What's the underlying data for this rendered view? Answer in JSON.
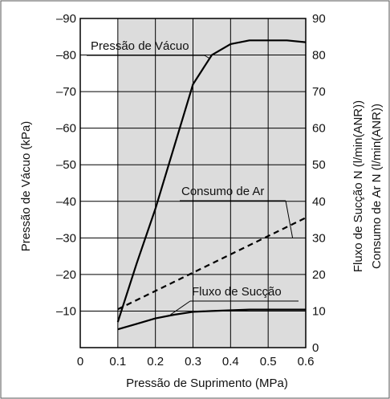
{
  "chart_data": {
    "type": "line",
    "xlabel": "Pressão de Suprimento (MPa)",
    "ylabel_left": "Pressão de Vácuo (kPa)",
    "ylabel_right": [
      "Fluxo de Sucção N (l/min(ANR))",
      "Consumo de Ar N (l/min(ANR))"
    ],
    "xlim": [
      0,
      0.6
    ],
    "ylim_left": [
      0,
      -90
    ],
    "ylim_right": [
      0,
      90
    ],
    "x_ticks": [
      "0",
      "0.1",
      "0.2",
      "0.3",
      "0.4",
      "0.5",
      "0.6"
    ],
    "y_left_ticks": [
      "–10",
      "–20",
      "–30",
      "–40",
      "–50",
      "–60",
      "–70",
      "–80",
      "–90"
    ],
    "y_right_ticks": [
      "0",
      "10",
      "20",
      "30",
      "40",
      "50",
      "60",
      "70",
      "80",
      "90"
    ],
    "grid": true,
    "shaded_region": {
      "x": [
        0.1,
        0.6
      ],
      "color": "#dcdcdc"
    },
    "series": [
      {
        "name": "Pressão de Vácuo",
        "axis": "left",
        "style": "solid",
        "x": [
          0.1,
          0.15,
          0.2,
          0.25,
          0.3,
          0.35,
          0.4,
          0.45,
          0.5,
          0.55,
          0.6
        ],
        "y": [
          -7,
          -23,
          -38,
          -55,
          -72,
          -80,
          -83,
          -84,
          -84,
          -84,
          -83.5
        ]
      },
      {
        "name": "Consumo de Ar",
        "axis": "right",
        "style": "dashed",
        "x": [
          0.1,
          0.6
        ],
        "y": [
          10.5,
          35.5
        ]
      },
      {
        "name": "Fluxo de Sucção",
        "axis": "right",
        "style": "solid",
        "x": [
          0.1,
          0.15,
          0.2,
          0.25,
          0.3,
          0.35,
          0.4,
          0.45,
          0.5,
          0.55,
          0.6
        ],
        "y": [
          5,
          6.5,
          8,
          9,
          9.8,
          10,
          10.2,
          10.4,
          10.4,
          10.4,
          10.4
        ]
      }
    ],
    "annotations": [
      {
        "text": "Pressão de Vácuo",
        "series": "Pressão de Vácuo"
      },
      {
        "text": "Consumo de Ar",
        "series": "Consumo de Ar"
      },
      {
        "text": "Fluxo de Sucção",
        "series": "Fluxo de Sucção"
      }
    ]
  }
}
